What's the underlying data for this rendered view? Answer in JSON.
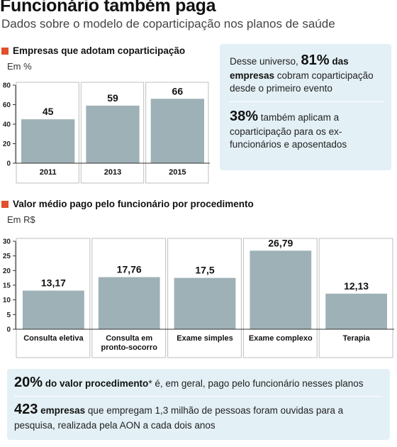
{
  "header": {
    "title": "Funcionário também paga",
    "subtitle": "Dados sobre o modelo de coparticipação nos planos de saúde"
  },
  "chart_data": [
    {
      "type": "bar",
      "title": "Empresas que adotam coparticipação",
      "unit": "Em %",
      "categories": [
        "2011",
        "2013",
        "2015"
      ],
      "values": [
        45,
        59,
        66
      ],
      "value_labels": [
        "45",
        "59",
        "66"
      ],
      "ylim": [
        0,
        80
      ],
      "yticks": [
        "80",
        "60",
        "40",
        "20",
        "0"
      ],
      "ytick_values": [
        80,
        60,
        40,
        20,
        0
      ],
      "grid": false
    },
    {
      "type": "bar",
      "title": "Valor médio pago pelo funcionário por procedimento",
      "unit": "Em R$",
      "categories": [
        [
          "Consulta eletiva"
        ],
        [
          "Consulta em",
          "pronto-socorro"
        ],
        [
          "Exame simples"
        ],
        [
          "Exame complexo"
        ],
        [
          "Terapia"
        ]
      ],
      "values": [
        13.17,
        17.76,
        17.5,
        26.79,
        12.13
      ],
      "value_labels": [
        "13,17",
        "17,76",
        "17,5",
        "26,79",
        "12,13"
      ],
      "ylim": [
        0,
        30
      ],
      "yticks": [
        "30",
        "25",
        "20",
        "15",
        "10",
        "5",
        "0"
      ],
      "ytick_values": [
        30,
        25,
        20,
        15,
        10,
        5,
        0
      ],
      "grid": false
    }
  ],
  "callout": {
    "p1_pre": "Desse universo, ",
    "p1_big": "81%",
    "p1_bold": " das empresas",
    "p1_post": " cobram coparticipação desde o primeiro evento",
    "p2_big": "38%",
    "p2_post": " também aplicam a coparticipação para os ex-funcionários e aposentados"
  },
  "footer": {
    "f1_big": "20%",
    "f1_bold": " do valor procedimento",
    "f1_post": "* é, em geral, pago pelo funcionário nesses planos",
    "f2_big": "423",
    "f2_bold": " empresas",
    "f2_post": " que empregam 1,3 milhão de pessoas foram ouvidas para a pesquisa, realizada pela AON a cada dois anos"
  },
  "colors": {
    "bar": "#9eb1b7",
    "marker": "#e0502a",
    "box_bg": "#e3f0f6",
    "frame": "#bfbfbf"
  }
}
